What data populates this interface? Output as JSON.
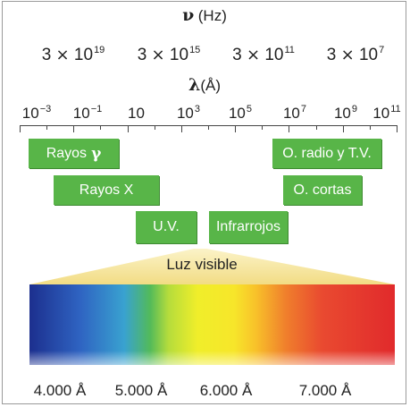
{
  "header": {
    "nu_symbol": "ν",
    "nu_unit": "(Hz)",
    "lambda_symbol": "λ",
    "lambda_unit": "(Å)"
  },
  "frequencies": [
    {
      "mantissa": "3",
      "times": "×",
      "base": "10",
      "exp": "19"
    },
    {
      "mantissa": "3",
      "times": "×",
      "base": "10",
      "exp": "15"
    },
    {
      "mantissa": "3",
      "times": "×",
      "base": "10",
      "exp": "11"
    },
    {
      "mantissa": "3",
      "times": "×",
      "base": "10",
      "exp": "7"
    }
  ],
  "wavelength_axis": {
    "labels": [
      {
        "base": "10",
        "exp": "−3"
      },
      {
        "base": "10",
        "exp": "−1"
      },
      {
        "base": "10",
        "exp": ""
      },
      {
        "base": "10",
        "exp": "3"
      },
      {
        "base": "10",
        "exp": "5"
      },
      {
        "base": "10",
        "exp": "7"
      },
      {
        "base": "10",
        "exp": "9"
      },
      {
        "base": "10",
        "exp": "11"
      }
    ]
  },
  "bands": {
    "gamma": {
      "label": "Rayos",
      "symbol": "γ"
    },
    "xray": {
      "label": "Rayos X"
    },
    "uv": {
      "label": "U.V."
    },
    "infrared": {
      "label": "Infrarrojos"
    },
    "radio_tv": {
      "label": "O. radio y T.V."
    },
    "short_waves": {
      "label": "O. cortas"
    }
  },
  "visible": {
    "label": "Luz visible",
    "wavelengths": [
      "4.000 Å",
      "5.000 Å",
      "6.000 Å",
      "7.000 Å"
    ]
  },
  "colors": {
    "band_green": "#58b548",
    "cone_yellow": "#f5e79a"
  }
}
